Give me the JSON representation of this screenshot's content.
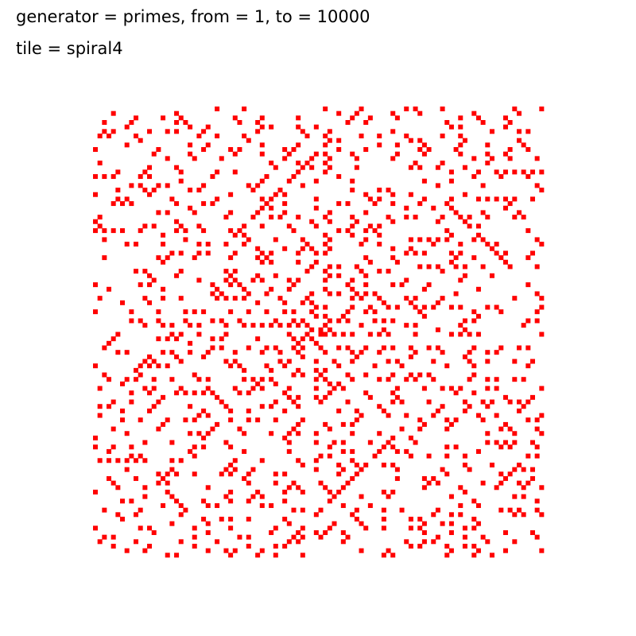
{
  "header": {
    "line1": "generator = primes, from = 1, to = 10000",
    "line2": "tile = spiral4"
  },
  "params": {
    "generator": "primes",
    "from": 1,
    "to": 10000,
    "tile": "spiral4"
  },
  "colors": {
    "background": "#ffffff",
    "cell": "#ff0000"
  }
}
